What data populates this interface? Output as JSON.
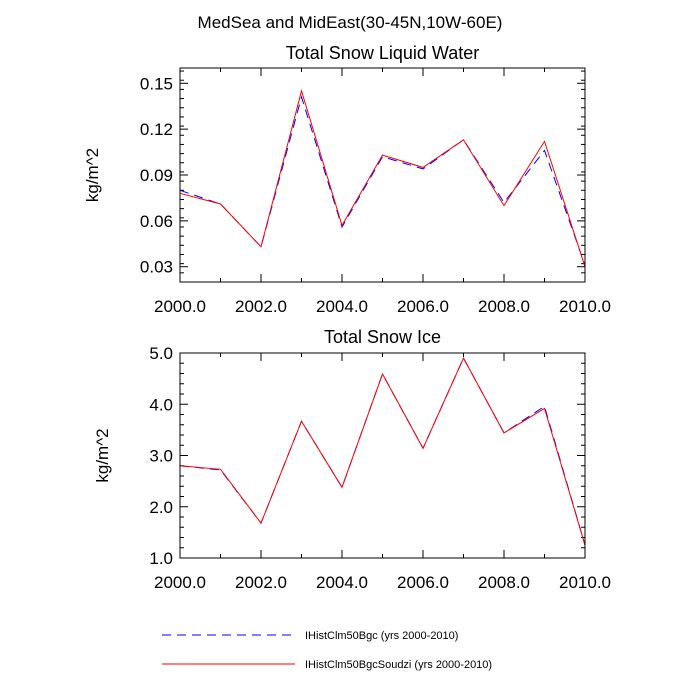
{
  "page_title": "MedSea and MidEast(30-45N,10W-60E)",
  "legend": [
    {
      "label": "IHistClm50Bgc (yrs 2000-2010)",
      "color": "#0000ff",
      "dash": "dashed"
    },
    {
      "label": "IHistClm50BgcSoudzi (yrs 2000-2010)",
      "color": "#ff0000",
      "dash": "solid"
    }
  ],
  "chart_data": [
    {
      "type": "line",
      "title": "Total Snow Liquid Water",
      "xlabel": "",
      "ylabel": "kg/m^2",
      "xlim": [
        2000,
        2010
      ],
      "ylim": [
        0.02,
        0.16
      ],
      "x_ticks": [
        2000,
        2002,
        2004,
        2006,
        2008,
        2010
      ],
      "x_tick_labels": [
        "2000.0",
        "2002.0",
        "2004.0",
        "2006.0",
        "2008.0",
        "2010.0"
      ],
      "y_ticks": [
        0.03,
        0.06,
        0.09,
        0.12,
        0.15
      ],
      "y_tick_labels": [
        "0.03",
        "0.06",
        "0.09",
        "0.12",
        "0.15"
      ],
      "x": [
        2000,
        2001,
        2002,
        2003,
        2004,
        2005,
        2006,
        2007,
        2008,
        2009,
        2010
      ],
      "series": [
        {
          "name": "IHistClm50Bgc (yrs 2000-2010)",
          "color": "#0000ff",
          "dash": "dashed",
          "values": [
            0.08,
            0.071,
            0.043,
            0.141,
            0.056,
            0.102,
            0.094,
            0.113,
            0.072,
            0.106,
            0.031
          ]
        },
        {
          "name": "IHistClm50BgcSoudzi (yrs 2000-2010)",
          "color": "#ff0000",
          "dash": "solid",
          "values": [
            0.078,
            0.071,
            0.043,
            0.145,
            0.057,
            0.103,
            0.095,
            0.113,
            0.07,
            0.112,
            0.03
          ]
        }
      ]
    },
    {
      "type": "line",
      "title": "Total Snow Ice",
      "xlabel": "",
      "ylabel": "kg/m^2",
      "xlim": [
        2000,
        2010
      ],
      "ylim": [
        1.0,
        5.0
      ],
      "x_ticks": [
        2000,
        2002,
        2004,
        2006,
        2008,
        2010
      ],
      "x_tick_labels": [
        "2000.0",
        "2002.0",
        "2004.0",
        "2006.0",
        "2008.0",
        "2010.0"
      ],
      "y_ticks": [
        1.0,
        2.0,
        3.0,
        4.0,
        5.0
      ],
      "y_tick_labels": [
        "1.0",
        "2.0",
        "3.0",
        "4.0",
        "5.0"
      ],
      "x": [
        2000,
        2001,
        2002,
        2003,
        2004,
        2005,
        2006,
        2007,
        2008,
        2009,
        2010
      ],
      "series": [
        {
          "name": "IHistClm50Bgc (yrs 2000-2010)",
          "color": "#0000ff",
          "dash": "dashed",
          "values": [
            2.8,
            2.72,
            1.68,
            3.67,
            2.38,
            4.59,
            3.14,
            4.9,
            3.44,
            3.96,
            1.25
          ]
        },
        {
          "name": "IHistClm50BgcSoudzi (yrs 2000-2010)",
          "color": "#ff0000",
          "dash": "solid",
          "values": [
            2.8,
            2.73,
            1.68,
            3.67,
            2.38,
            4.59,
            3.14,
            4.9,
            3.44,
            3.92,
            1.25
          ]
        }
      ]
    }
  ]
}
